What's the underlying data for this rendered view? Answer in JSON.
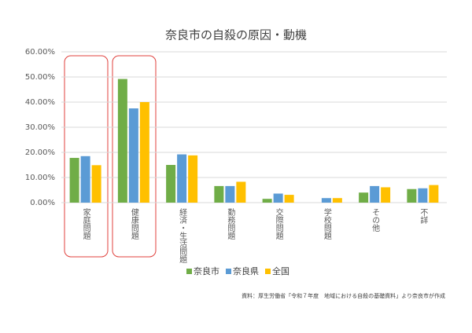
{
  "chart_data": {
    "type": "bar",
    "title": "奈良市の自殺の原因・動機",
    "categories": [
      "家庭問題",
      "健康問題",
      "経済・生活問題",
      "勤務問題",
      "交際問題",
      "学校問題",
      "その他",
      "不詳"
    ],
    "series": [
      {
        "name": "奈良市",
        "color": "#70ad47",
        "values": [
          17.8,
          49.2,
          15.0,
          6.6,
          1.5,
          0,
          4.0,
          5.4
        ]
      },
      {
        "name": "奈良県",
        "color": "#5b9bd5",
        "values": [
          18.5,
          37.5,
          19.2,
          6.6,
          3.6,
          1.8,
          6.6,
          5.7
        ]
      },
      {
        "name": "全国",
        "color": "#ffc000",
        "values": [
          14.9,
          40.0,
          18.8,
          8.3,
          3.1,
          1.8,
          6.1,
          7.0
        ]
      }
    ],
    "ylim": [
      0,
      60
    ],
    "yticks": [
      {
        "value": 0,
        "label": "0.00%"
      },
      {
        "value": 10,
        "label": "10.00%"
      },
      {
        "value": 20,
        "label": "20.00%"
      },
      {
        "value": 30,
        "label": "30.00%"
      },
      {
        "value": 40,
        "label": "40.00%"
      },
      {
        "value": 50,
        "label": "50.00%"
      },
      {
        "value": 60,
        "label": "60.00%"
      }
    ],
    "grid": true,
    "note": "資料：厚生労働省「令和７年度　地域における自殺の基礎資料」より奈良市が作成"
  }
}
